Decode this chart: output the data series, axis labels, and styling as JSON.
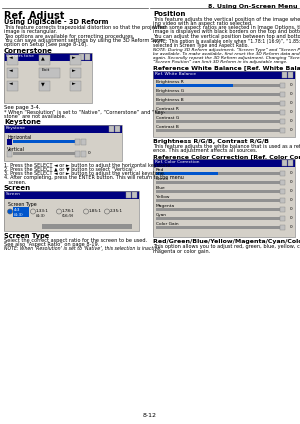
{
  "page_number": "8-12",
  "header_text": "8. Using On-Screen Menu",
  "bg_color": "#ffffff",
  "title": "Ref. Adjust",
  "subtitle": "Using DigiScale - 3D Reform",
  "body_left": [
    "This feature corrects trapezoidal distortion so that the projected",
    "image is rectangular.",
    "Two options are available for correcting procedures.",
    "You can save adjustment settings by using the 3D Reform Save",
    "option on Setup (See page 8-16)."
  ],
  "cornerstone_label": "Cornerstone",
  "cornerstone_note1": "See page 3-4.",
  "cornerstone_note2": "* When “Resolution” is set to “Native”, “Cornerstone” and “Key-",
  "cornerstone_note2b": "stone” are not available.",
  "keystone_label": "Keystone",
  "keystone_steps": [
    "1. Press the SELECT ◄ or ► button to adjust the horizontal keystone.",
    "2. Press the SELECT ▲ or ▼ button to select “Vertical”.",
    "3. Press the SELECT ◄ or ► button to adjust the vertical keystone.",
    "4. After completing, press the ENTER button. This will return to the menu",
    "   screen."
  ],
  "screen_label": "Screen",
  "screen_type_label": "Screen Type",
  "screen_type_desc1": "Select the correct aspect ratio for the screen to be used.",
  "screen_type_desc2": "See also “Aspect Ratio” on page 8-19.",
  "screen_type_note": "NOTE: When ‘Resolution’ is set to ‘Native’, this selection is inactive.",
  "position_label": "Position",
  "position_body": [
    "This feature adjusts the vertical position of the image when view-",
    "ing video with an aspect ratio selected.",
    "When some aspect ratios are selected in Image Options, the",
    "image is displayed with black borders on the top and bottom.",
    "You can adjust the vertical position between top and bottom."
  ],
  "position_note1": "NOTE: This option is available only when “1.78:1 (16:9)”, “1.85:1” and “2.35:1” are",
  "position_note1b": "selected in Screen Type and Aspect Ratio.",
  "position_note2a": "NOTE: During 3D Reform adjustment, “Screen Type” and “Screen Position” may not",
  "position_note2b": "be available. To make available, first reset the 3D Reform data and then do settings",
  "position_note2c": "again. Secondly repeat the 3D Reform adjustment. Changing “Screen Type” and",
  "position_note2d": "“Screen Position” can limit 3D Reform in its adjustable range.",
  "ref_wb_label": "Reference White Balance [Ref. White Balance]",
  "ref_wb_rows": [
    "Brightness R",
    "Brightness G",
    "Brightness B",
    "Contrast R",
    "Contrast G",
    "Contrast B"
  ],
  "brightness_label": "Brightness R/G/B, Contrast R/G/B",
  "brightness_desc1": "This feature adjusts the white balance that is used as a refer-",
  "brightness_desc2": "ence. This adjustment affects all sources.",
  "ref_cc_label": "Reference Color Correction [Ref. Color Correction]",
  "ref_cc_rows": [
    "Red",
    "Green",
    "Blue",
    "Yellow",
    "Magenta",
    "Cyan",
    "Color Gain"
  ],
  "red_gain_label": "Red/Green/Blue/Yellow/Magenta/Cyan/Color Gain",
  "red_gain_desc1": "This option allows you to adjust red, green, blue, yellow, cyan,",
  "red_gain_desc2": "magenta or color gain.",
  "dialog_title_bg": "#000080",
  "dialog_bg_color": "#d4d0c8",
  "slider_active_color": "#0055cc",
  "slider_track_color": "#909090",
  "btn_color": "#c0c0c0"
}
